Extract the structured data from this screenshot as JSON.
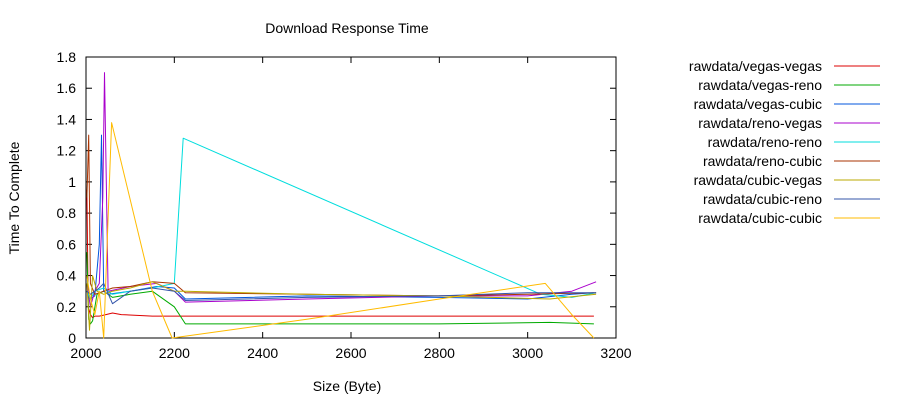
{
  "chart_data": {
    "type": "line",
    "title": "Download Response Time",
    "xlabel": "Size (Byte)",
    "ylabel": "Time To Complete",
    "xlim": [
      2000,
      3200
    ],
    "ylim": [
      0,
      1.8
    ],
    "xticks": [
      2000,
      2200,
      2400,
      2600,
      2800,
      3000,
      3200
    ],
    "yticks": [
      0,
      0.2,
      0.4,
      0.6,
      0.8,
      1,
      1.2,
      1.4,
      1.6,
      1.8
    ],
    "xtick_labels": [
      "2000",
      "2200",
      "2400",
      "2600",
      "2800",
      "3000",
      "3200"
    ],
    "ytick_labels": [
      "0",
      "0.2",
      "0.4",
      "0.6",
      "0.8",
      "1",
      "1.2",
      "1.4",
      "1.6",
      "1.8"
    ],
    "grid": false,
    "legend_position": "right, outside plot",
    "series": [
      {
        "name": "rawdata/vegas-vegas",
        "color": "#dd0000",
        "x": [
          2002,
          2005,
          2010,
          2015,
          2020,
          2030,
          2045,
          2060,
          2080,
          2150,
          2220,
          2500,
          2800,
          3050,
          3150
        ],
        "y": [
          0.95,
          0.2,
          0.15,
          0.13,
          0.14,
          0.14,
          0.15,
          0.16,
          0.15,
          0.14,
          0.14,
          0.14,
          0.14,
          0.14,
          0.14
        ]
      },
      {
        "name": "rawdata/vegas-reno",
        "color": "#00aa00",
        "x": [
          2002,
          2006,
          2010,
          2015,
          2025,
          2040,
          2060,
          2100,
          2150,
          2200,
          2225,
          2500,
          2800,
          3050,
          3150
        ],
        "y": [
          0.55,
          0.12,
          0.09,
          0.11,
          0.28,
          0.3,
          0.26,
          0.28,
          0.3,
          0.2,
          0.09,
          0.09,
          0.09,
          0.1,
          0.09
        ]
      },
      {
        "name": "rawdata/vegas-cubic",
        "color": "#0055dd",
        "x": [
          2002,
          2010,
          2020,
          2030,
          2035,
          2040,
          2050,
          2100,
          2160,
          2200,
          2225,
          2500,
          2800,
          3000,
          3100,
          3150
        ],
        "y": [
          0.3,
          0.25,
          0.27,
          0.6,
          1.3,
          0.3,
          0.28,
          0.3,
          0.33,
          0.32,
          0.25,
          0.27,
          0.26,
          0.25,
          0.28,
          0.29
        ]
      },
      {
        "name": "rawdata/reno-vegas",
        "color": "#aa00cc",
        "x": [
          2002,
          2010,
          2020,
          2030,
          2038,
          2042,
          2050,
          2100,
          2160,
          2200,
          2225,
          2500,
          2800,
          3000,
          3100,
          3155
        ],
        "y": [
          0.35,
          0.2,
          0.3,
          0.35,
          0.9,
          1.7,
          0.3,
          0.33,
          0.35,
          0.3,
          0.23,
          0.25,
          0.27,
          0.27,
          0.3,
          0.36
        ]
      },
      {
        "name": "rawdata/reno-reno",
        "color": "#00dddd",
        "x": [
          2002,
          2010,
          2020,
          2040,
          2060,
          2100,
          2150,
          2200,
          2220,
          3030,
          3100,
          3155
        ],
        "y": [
          0.3,
          0.25,
          0.3,
          0.32,
          0.28,
          0.3,
          0.32,
          0.35,
          1.28,
          0.28,
          0.26,
          0.29
        ]
      },
      {
        "name": "rawdata/reno-cubic",
        "color": "#aa3300",
        "x": [
          2002,
          2006,
          2010,
          2020,
          2040,
          2060,
          2100,
          2150,
          2200,
          2225,
          2500,
          2800,
          3000,
          3155
        ],
        "y": [
          0.9,
          1.3,
          0.35,
          0.28,
          0.3,
          0.32,
          0.33,
          0.36,
          0.35,
          0.29,
          0.28,
          0.27,
          0.28,
          0.29
        ]
      },
      {
        "name": "rawdata/cubic-vegas",
        "color": "#bbaa00",
        "x": [
          2002,
          2008,
          2015,
          2025,
          2040,
          2060,
          2100,
          2150,
          2200,
          2225,
          2500,
          2800,
          3050,
          3155
        ],
        "y": [
          0.35,
          0.05,
          0.4,
          0.3,
          0.28,
          0.3,
          0.32,
          0.36,
          0.3,
          0.3,
          0.28,
          0.27,
          0.25,
          0.28
        ]
      },
      {
        "name": "rawdata/cubic-reno",
        "color": "#3355aa",
        "x": [
          2002,
          2010,
          2020,
          2030,
          2040,
          2060,
          2100,
          2150,
          2200,
          2225,
          2500,
          2800,
          3000,
          3155
        ],
        "y": [
          0.3,
          0.28,
          0.3,
          0.32,
          0.35,
          0.22,
          0.3,
          0.32,
          0.3,
          0.24,
          0.26,
          0.27,
          0.29,
          0.29
        ]
      },
      {
        "name": "rawdata/cubic-cubic",
        "color": "#ffbb00",
        "x": [
          2002,
          2010,
          2020,
          2030,
          2040,
          2058,
          2150,
          2195,
          2500,
          2800,
          3040,
          3100,
          3150
        ],
        "y": [
          0.4,
          0.25,
          0.15,
          0.3,
          0.0,
          1.38,
          0.3,
          0.0,
          0.12,
          0.25,
          0.35,
          0.15,
          0.0
        ]
      }
    ]
  }
}
